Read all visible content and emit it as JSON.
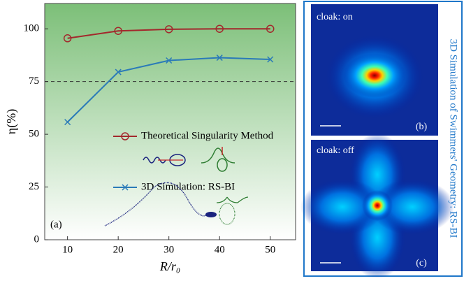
{
  "chart_data": {
    "type": "line",
    "xlabel": "R/r₀",
    "ylabel": "η(%)",
    "panel_label": "(a)",
    "x": [
      10,
      20,
      30,
      40,
      50
    ],
    "series": [
      {
        "name": "Theoretical Singularity Method",
        "color": "#a3282c",
        "marker": "circle",
        "values": [
          95.5,
          99,
          99.8,
          100,
          100
        ]
      },
      {
        "name": "3D Simulation: RS-BI",
        "color": "#2a7ab8",
        "marker": "x",
        "values": [
          55.8,
          79.5,
          85,
          86.3,
          85.5
        ]
      }
    ],
    "ref_line": 75,
    "xlim": [
      5.5,
      55
    ],
    "ylim": [
      0,
      112
    ],
    "xticks": [
      10,
      20,
      30,
      40,
      50
    ],
    "yticks": [
      0,
      25,
      50,
      75,
      100
    ]
  },
  "panels": {
    "side_title": "3D Simulation of Swimmers' Geometry: RS-BI",
    "top": {
      "caption": "cloak: on",
      "label": "(b)"
    },
    "bottom": {
      "caption": "cloak: off",
      "label": "(c)"
    }
  }
}
